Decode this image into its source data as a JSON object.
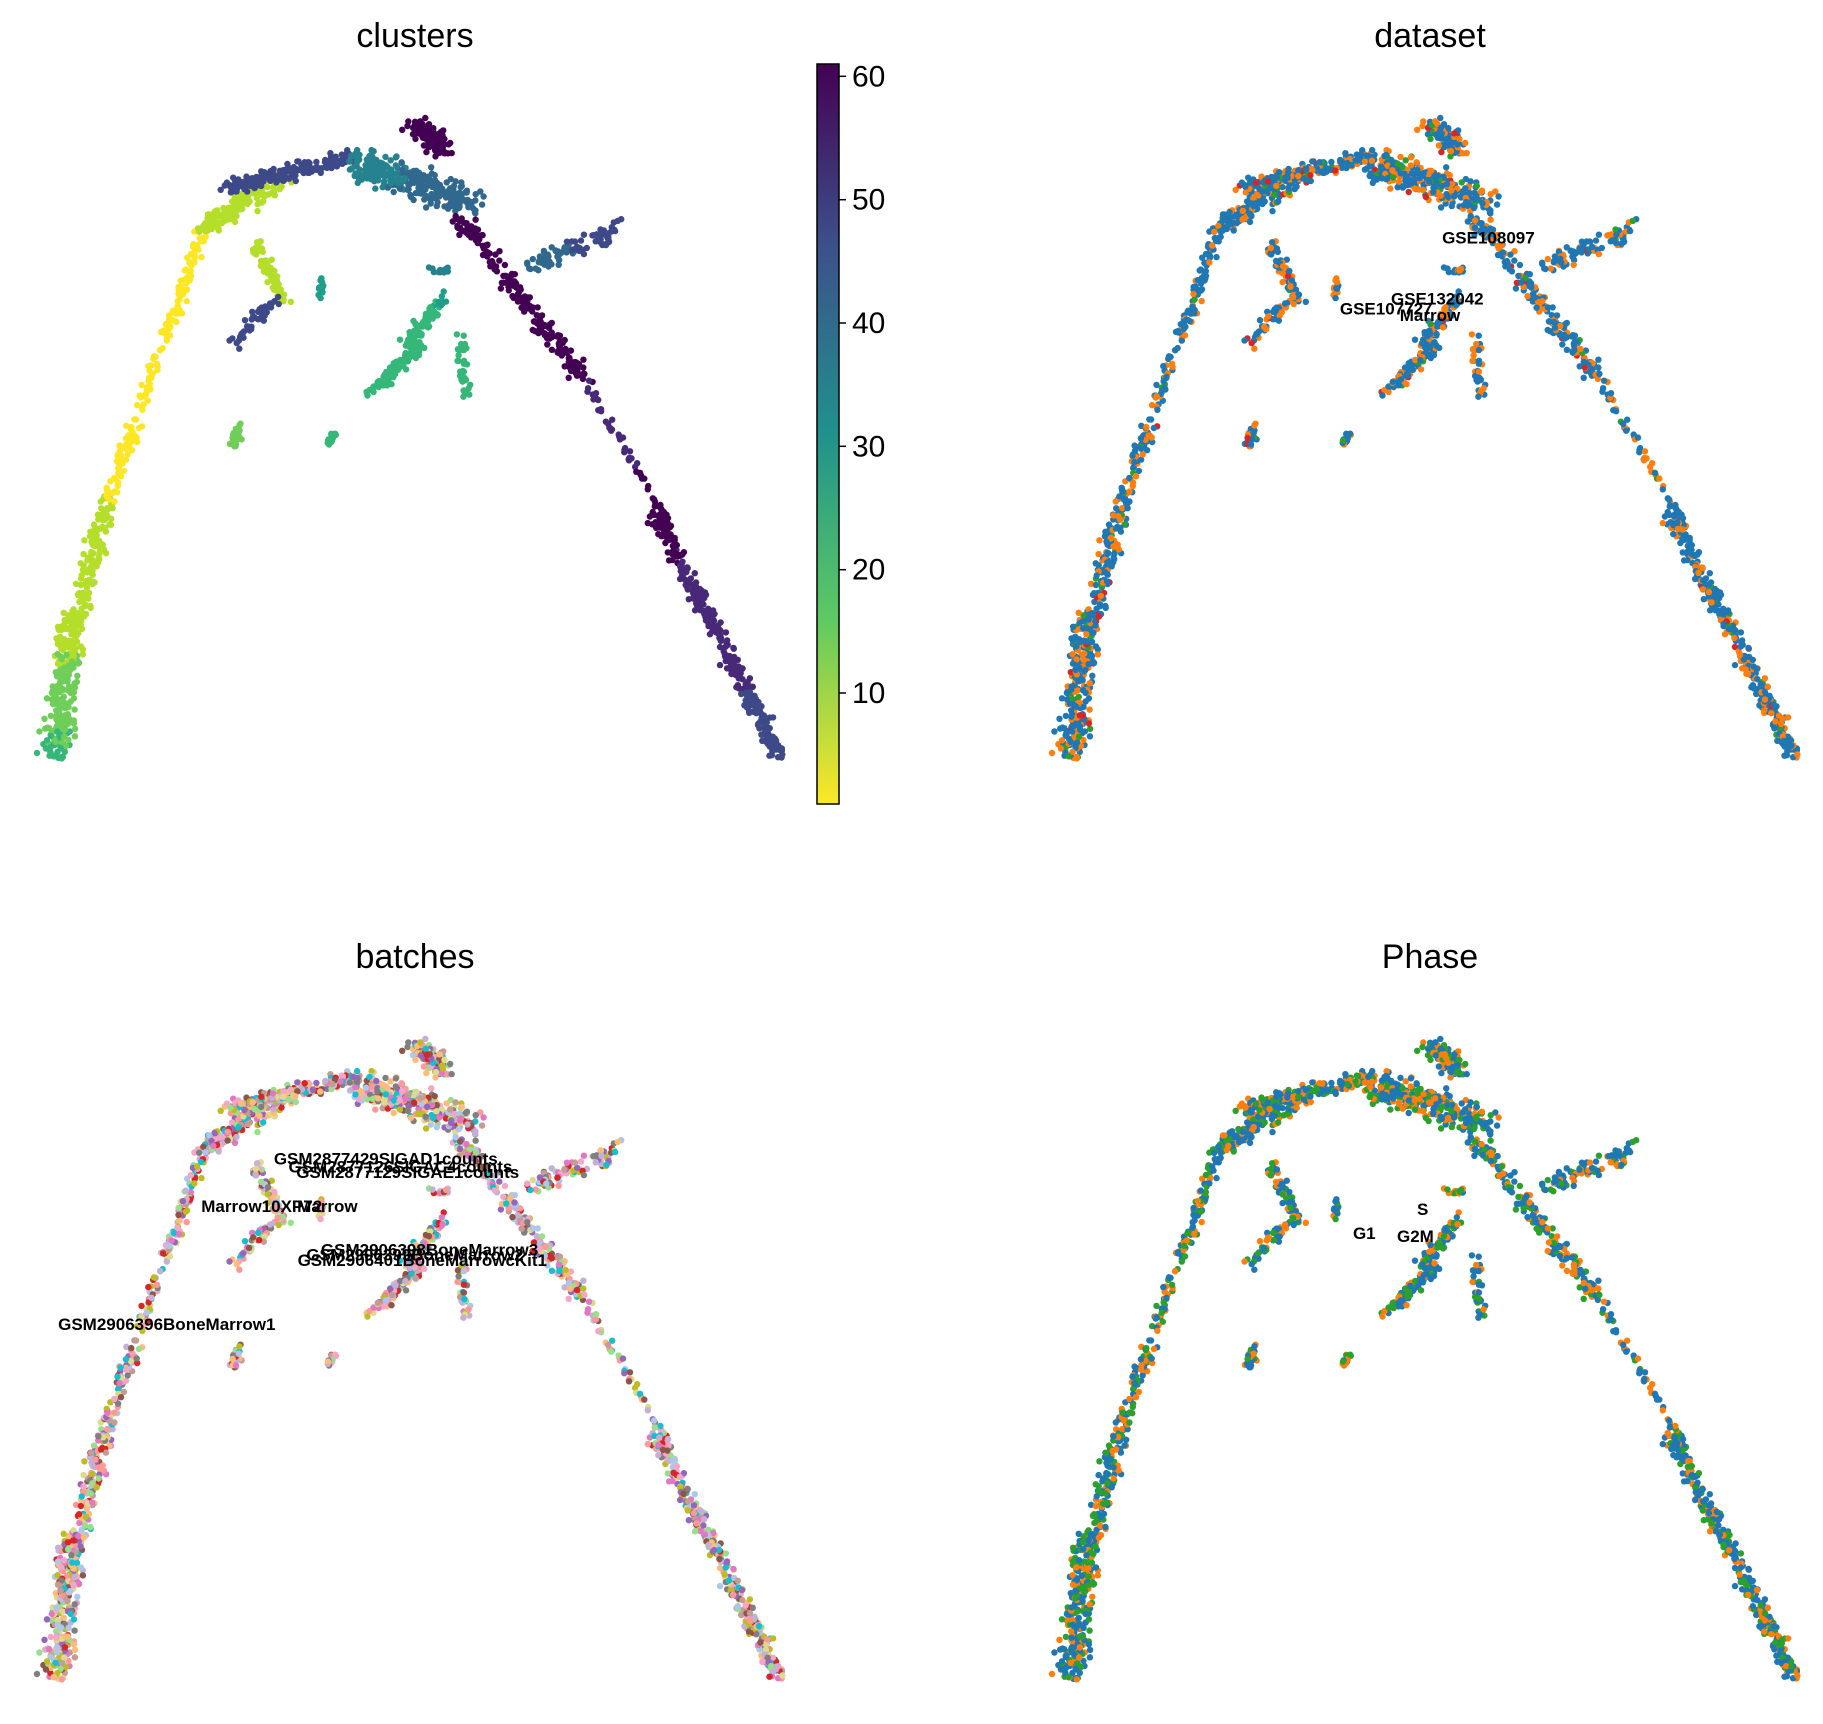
{
  "colors": {
    "viridis_low": "#fde725",
    "viridis_high": "#440154",
    "dataset": [
      "#1f77b4",
      "#ff7f0e",
      "#2ca02c",
      "#d62728"
    ],
    "phase": [
      "#1f77b4",
      "#ff7f0e",
      "#2ca02c"
    ],
    "batches": [
      "#f4a6c6",
      "#aec7e8",
      "#98df8a",
      "#c5b0d5",
      "#c49c94",
      "#17becf",
      "#9467bd",
      "#d62728",
      "#e377c2",
      "#bcbd22",
      "#ff9896",
      "#8c564b",
      "#7f7f7f",
      "#dbdb8d",
      "#ffbb78"
    ]
  },
  "chart_data": [
    {
      "type": "scatter",
      "title": "clusters",
      "color_by": "continuous",
      "colorbar": {
        "ticks": [
          "10",
          "20",
          "30",
          "40",
          "50",
          "60"
        ],
        "range": [
          1,
          61
        ]
      },
      "annotations": []
    },
    {
      "type": "scatter",
      "title": "dataset",
      "color_by": "categorical",
      "annotations": [
        {
          "text": "GSE108097",
          "x": 0.58,
          "y": 0.78
        },
        {
          "text": "GSE132042",
          "x": 0.51,
          "y": 0.69
        },
        {
          "text": "GSE107727",
          "x": 0.44,
          "y": 0.675
        },
        {
          "text": "Marrow",
          "x": 0.5,
          "y": 0.665
        }
      ]
    },
    {
      "type": "scatter",
      "title": "batches",
      "color_by": "categorical",
      "annotations": [
        {
          "text": "GSM2877429SIGAD1counts",
          "x": 0.46,
          "y": 0.78
        },
        {
          "text": "GSM2877126SIGAC4counts",
          "x": 0.48,
          "y": 0.768
        },
        {
          "text": "GSM2877129SIGAE1counts",
          "x": 0.49,
          "y": 0.76
        },
        {
          "text": "Marrow10XP72",
          "x": 0.29,
          "y": 0.71
        },
        {
          "text": "Marrow",
          "x": 0.38,
          "y": 0.71
        },
        {
          "text": "GSM2906398BoneMarrow3",
          "x": 0.52,
          "y": 0.645
        },
        {
          "text": "GSM2906399BoneMarrow2",
          "x": 0.5,
          "y": 0.638
        },
        {
          "text": "GSM2906401BoneMarrowcKit1",
          "x": 0.51,
          "y": 0.63
        },
        {
          "text": "GSM2906396BoneMarrow1",
          "x": 0.16,
          "y": 0.535
        }
      ]
    },
    {
      "type": "scatter",
      "title": "Phase",
      "color_by": "categorical",
      "annotations": [
        {
          "text": "S",
          "x": 0.49,
          "y": 0.705
        },
        {
          "text": "G1",
          "x": 0.41,
          "y": 0.67
        },
        {
          "text": "G2M",
          "x": 0.48,
          "y": 0.665
        }
      ]
    }
  ]
}
